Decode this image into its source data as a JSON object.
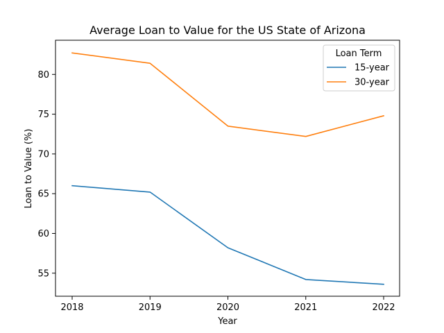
{
  "chart_data": {
    "type": "line",
    "title": "Average Loan to Value for the US State of Arizona",
    "xlabel": "Year",
    "ylabel": "Loan to Value (%)",
    "categories": [
      "2018",
      "2019",
      "2020",
      "2021",
      "2022"
    ],
    "yticks": [
      55,
      60,
      65,
      70,
      75,
      80
    ],
    "ylim": [
      52.1,
      84.3
    ],
    "grid": false,
    "legend": {
      "title": "Loan Term",
      "placement": "top-right"
    },
    "series": [
      {
        "name": "15-year",
        "color": "#1f77b4",
        "values": [
          66.0,
          65.2,
          58.2,
          54.2,
          53.6
        ]
      },
      {
        "name": "30-year",
        "color": "#ff7f0e",
        "values": [
          82.7,
          81.4,
          73.5,
          72.2,
          74.8
        ]
      }
    ]
  }
}
